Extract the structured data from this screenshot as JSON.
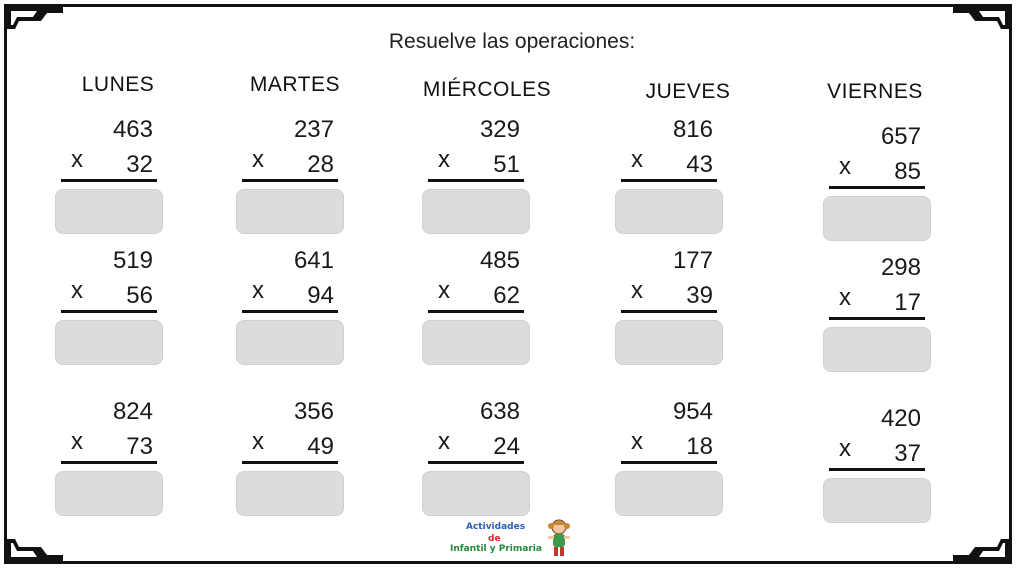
{
  "title": "Resuelve las operaciones:",
  "days": [
    "LUNES",
    "MARTES",
    "MIÉRCOLES",
    "JUEVES",
    "VIERNES"
  ],
  "multiply_sign": "x",
  "problems": [
    [
      {
        "top": "463",
        "bottom": "32"
      },
      {
        "top": "519",
        "bottom": "56"
      },
      {
        "top": "824",
        "bottom": "73"
      }
    ],
    [
      {
        "top": "237",
        "bottom": "28"
      },
      {
        "top": "641",
        "bottom": "94"
      },
      {
        "top": "356",
        "bottom": "49"
      }
    ],
    [
      {
        "top": "329",
        "bottom": "51"
      },
      {
        "top": "485",
        "bottom": "62"
      },
      {
        "top": "638",
        "bottom": "24"
      }
    ],
    [
      {
        "top": "816",
        "bottom": "43"
      },
      {
        "top": "177",
        "bottom": "39"
      },
      {
        "top": "954",
        "bottom": "18"
      }
    ],
    [
      {
        "top": "657",
        "bottom": "85"
      },
      {
        "top": "298",
        "bottom": "17"
      },
      {
        "top": "420",
        "bottom": "37"
      }
    ]
  ],
  "logo": {
    "line1": "Actividades",
    "line2": "de",
    "line3": "Infantil y Primaria"
  }
}
